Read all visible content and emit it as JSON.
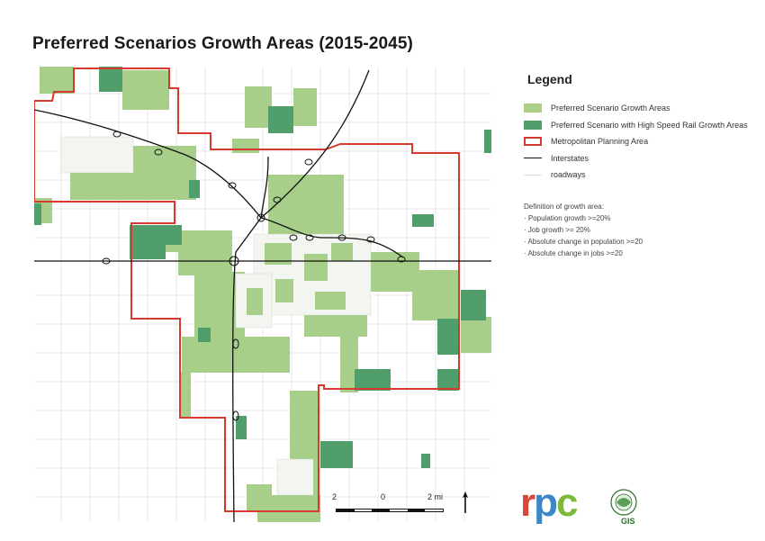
{
  "title": "Preferred Scenarios Growth Areas (2015-2045)",
  "legend": {
    "title": "Legend",
    "items": [
      {
        "label": "Preferred Scenario Growth Areas",
        "color": "#a8cf8a",
        "kind": "fill"
      },
      {
        "label": "Preferred Scenario with High Speed Rail Growth Areas",
        "color": "#4f9e6b",
        "kind": "fill"
      },
      {
        "label": "Metropolitan Planning Area",
        "color": "#d63a2f",
        "kind": "outline"
      },
      {
        "label": "Interstates",
        "color": "#111111",
        "kind": "line"
      },
      {
        "label": "roadways",
        "color": "#dddddd",
        "kind": "road"
      }
    ]
  },
  "definition": {
    "heading": "Definition of growth area:",
    "items": [
      "Population growth >=20%",
      "Job growth >= 20%",
      "Absolute change in population >=20",
      "Absolute change in jobs >=20"
    ]
  },
  "scale": {
    "left": "2",
    "mid": "0",
    "right": "2 mi"
  },
  "logos": {
    "rpc_r": "r",
    "rpc_p": "p",
    "rpc_c": "c",
    "gis": "GIS"
  },
  "colors": {
    "light_green": "#a8cf8a",
    "dark_green": "#4f9e6b",
    "boundary": "#d63a2f"
  },
  "icons": [
    "north-arrow-icon",
    "gis-consortium-logo"
  ]
}
